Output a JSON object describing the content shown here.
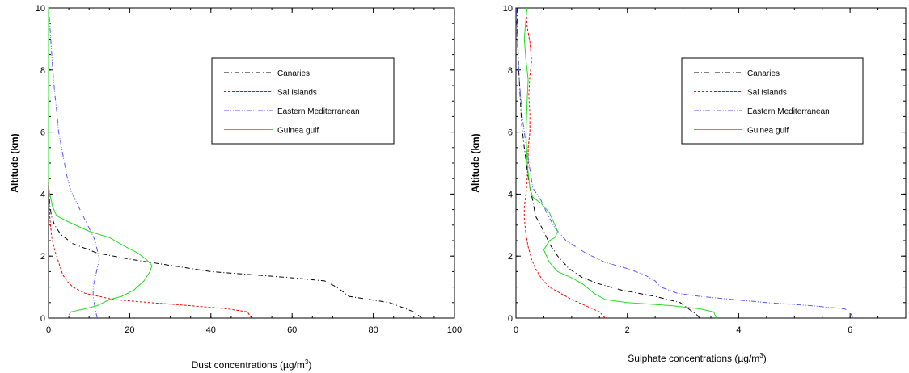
{
  "chart_data": [
    {
      "type": "line",
      "xlabel": "Dust concentrations (µg/m",
      "xlabel_sup": "3",
      "xlabel_end": ")",
      "ylabel": "Altitude (km)",
      "xlim": [
        0,
        100
      ],
      "ylim": [
        0,
        10
      ],
      "x_ticks": [
        0,
        20,
        40,
        60,
        80,
        100
      ],
      "x_tick_labels": [
        "0",
        "20",
        "40",
        "60",
        "80",
        "100"
      ],
      "y_ticks": [
        0,
        2,
        4,
        6,
        8,
        10
      ],
      "y_tick_labels": [
        "0",
        "2",
        "4",
        "6",
        "8",
        "10"
      ],
      "legend_position": "top-right",
      "series": [
        {
          "name": "Canaries",
          "color": "#000000",
          "dash": "dashdot",
          "points": [
            [
              92,
              0
            ],
            [
              90,
              0.2
            ],
            [
              84,
              0.5
            ],
            [
              74,
              0.7
            ],
            [
              73,
              0.8
            ],
            [
              71,
              1.0
            ],
            [
              68,
              1.2
            ],
            [
              60,
              1.3
            ],
            [
              50,
              1.4
            ],
            [
              40,
              1.5
            ],
            [
              30,
              1.7
            ],
            [
              20,
              1.9
            ],
            [
              12,
              2.1
            ],
            [
              6,
              2.4
            ],
            [
              3,
              2.7
            ],
            [
              1.5,
              3.0
            ],
            [
              0.7,
              3.3
            ],
            [
              0.3,
              3.7
            ],
            [
              0.1,
              4.2
            ],
            [
              0,
              5
            ],
            [
              0,
              10
            ]
          ]
        },
        {
          "name": "Sal Islands",
          "color": "#ff0000",
          "dash": "dash",
          "points": [
            [
              50,
              0
            ],
            [
              49,
              0.2
            ],
            [
              44,
              0.3
            ],
            [
              35,
              0.4
            ],
            [
              25,
              0.5
            ],
            [
              16,
              0.6
            ],
            [
              9,
              0.8
            ],
            [
              6,
              1.0
            ],
            [
              4.5,
              1.2
            ],
            [
              3.5,
              1.4
            ],
            [
              2.5,
              1.8
            ],
            [
              1.5,
              2.2
            ],
            [
              0.8,
              2.6
            ],
            [
              0.5,
              3.0
            ],
            [
              0.3,
              3.3
            ],
            [
              0.2,
              3.6
            ],
            [
              0.1,
              4.0
            ],
            [
              0,
              4.5
            ],
            [
              0,
              10
            ]
          ]
        },
        {
          "name": "Eastern Mediterranean",
          "color": "#5555ff",
          "dash": "dashdotdot",
          "points": [
            [
              12,
              0
            ],
            [
              11.5,
              0.3
            ],
            [
              11,
              0.7
            ],
            [
              11,
              1.0
            ],
            [
              11.5,
              1.3
            ],
            [
              12,
              1.6
            ],
            [
              12.5,
              1.9
            ],
            [
              12,
              2.2
            ],
            [
              11.5,
              2.5
            ],
            [
              10,
              2.9
            ],
            [
              8.5,
              3.3
            ],
            [
              7,
              3.7
            ],
            [
              5.5,
              4.1
            ],
            [
              4.5,
              4.6
            ],
            [
              3.5,
              5.3
            ],
            [
              2.5,
              6.0
            ],
            [
              2,
              6.7
            ],
            [
              1.5,
              7.3
            ],
            [
              1,
              8.1
            ],
            [
              0.7,
              8.7
            ],
            [
              0.4,
              9.3
            ],
            [
              0.2,
              9.7
            ],
            [
              0.1,
              10
            ]
          ]
        },
        {
          "name": "Guinea gulf",
          "color": "#22dd22",
          "dash": "solid",
          "points": [
            [
              5,
              0.1
            ],
            [
              5.5,
              0.2
            ],
            [
              9,
              0.3
            ],
            [
              12,
              0.4
            ],
            [
              15,
              0.6
            ],
            [
              18,
              0.7
            ],
            [
              21,
              0.9
            ],
            [
              23.5,
              1.2
            ],
            [
              25,
              1.5
            ],
            [
              25.5,
              1.7
            ],
            [
              24,
              1.9
            ],
            [
              22,
              2.1
            ],
            [
              19,
              2.3
            ],
            [
              15,
              2.6
            ],
            [
              10,
              2.8
            ],
            [
              5,
              3.1
            ],
            [
              2,
              3.3
            ],
            [
              1,
              3.6
            ],
            [
              0.5,
              3.9
            ],
            [
              0.1,
              4.1
            ],
            [
              0,
              4.5
            ],
            [
              0,
              10
            ]
          ]
        }
      ]
    },
    {
      "type": "line",
      "xlabel": "Sulphate concentrations (µg/m",
      "xlabel_sup": "3",
      "xlabel_end": ")",
      "ylabel": "Altitude (km)",
      "xlim": [
        0,
        7
      ],
      "ylim": [
        0,
        10
      ],
      "x_ticks": [
        0,
        2,
        4,
        6
      ],
      "x_tick_labels": [
        "0",
        "2",
        "4",
        "6"
      ],
      "y_ticks": [
        0,
        2,
        4,
        6,
        8,
        10
      ],
      "y_tick_labels": [
        "0",
        "2",
        "4",
        "6",
        "8",
        "10"
      ],
      "legend_position": "top-right",
      "series": [
        {
          "name": "Canaries",
          "color": "#000000",
          "dash": "dashdot",
          "points": [
            [
              3.3,
              0
            ],
            [
              3.25,
              0.1
            ],
            [
              3.1,
              0.3
            ],
            [
              2.95,
              0.5
            ],
            [
              2.5,
              0.7
            ],
            [
              1.9,
              0.9
            ],
            [
              1.5,
              1.1
            ],
            [
              1.2,
              1.3
            ],
            [
              0.95,
              1.6
            ],
            [
              0.75,
              2.0
            ],
            [
              0.6,
              2.4
            ],
            [
              0.5,
              2.8
            ],
            [
              0.35,
              3.3
            ],
            [
              0.3,
              3.8
            ],
            [
              0.25,
              4.2
            ],
            [
              0.2,
              4.8
            ],
            [
              0.15,
              5.5
            ],
            [
              0.1,
              6.3
            ],
            [
              0.08,
              7.0
            ],
            [
              0.05,
              8.0
            ],
            [
              0.03,
              9.0
            ],
            [
              0.02,
              10
            ]
          ]
        },
        {
          "name": "Sal Islands",
          "color": "#ff0000",
          "dash": "dash",
          "points": [
            [
              1.6,
              0
            ],
            [
              1.5,
              0.2
            ],
            [
              1.25,
              0.4
            ],
            [
              1.0,
              0.6
            ],
            [
              0.8,
              0.8
            ],
            [
              0.6,
              1.0
            ],
            [
              0.45,
              1.3
            ],
            [
              0.35,
              1.6
            ],
            [
              0.28,
              1.9
            ],
            [
              0.22,
              2.3
            ],
            [
              0.18,
              2.7
            ],
            [
              0.15,
              3.2
            ],
            [
              0.15,
              3.6
            ],
            [
              0.18,
              4.0
            ],
            [
              0.2,
              4.5
            ],
            [
              0.22,
              5.0
            ],
            [
              0.22,
              5.5
            ],
            [
              0.25,
              6.0
            ],
            [
              0.25,
              6.6
            ],
            [
              0.23,
              7.2
            ],
            [
              0.25,
              7.8
            ],
            [
              0.28,
              8.3
            ],
            [
              0.25,
              8.9
            ],
            [
              0.2,
              9.4
            ],
            [
              0.18,
              10
            ]
          ]
        },
        {
          "name": "Eastern Mediterranean",
          "color": "#5555ff",
          "dash": "dashdotdot",
          "points": [
            [
              6.05,
              0
            ],
            [
              6.0,
              0.2
            ],
            [
              5.9,
              0.3
            ],
            [
              5.3,
              0.4
            ],
            [
              4.5,
              0.5
            ],
            [
              3.9,
              0.6
            ],
            [
              3.3,
              0.7
            ],
            [
              2.9,
              0.8
            ],
            [
              2.6,
              1.0
            ],
            [
              2.5,
              1.2
            ],
            [
              2.3,
              1.4
            ],
            [
              2.0,
              1.6
            ],
            [
              1.6,
              1.8
            ],
            [
              1.25,
              2.1
            ],
            [
              0.9,
              2.5
            ],
            [
              0.7,
              2.9
            ],
            [
              0.55,
              3.4
            ],
            [
              0.45,
              3.8
            ],
            [
              0.3,
              4.2
            ],
            [
              0.25,
              4.8
            ],
            [
              0.18,
              5.6
            ],
            [
              0.12,
              6.4
            ],
            [
              0.08,
              7.2
            ],
            [
              0.05,
              8.0
            ],
            [
              0.02,
              9.0
            ],
            [
              0.01,
              10
            ]
          ]
        },
        {
          "name": "Guinea gulf",
          "color": "#22dd22",
          "dash": "solid",
          "points": [
            [
              3.6,
              0
            ],
            [
              3.55,
              0.2
            ],
            [
              3.3,
              0.3
            ],
            [
              2.8,
              0.4
            ],
            [
              2.0,
              0.5
            ],
            [
              1.6,
              0.6
            ],
            [
              1.4,
              0.8
            ],
            [
              1.2,
              1.1
            ],
            [
              1.0,
              1.3
            ],
            [
              0.75,
              1.5
            ],
            [
              0.6,
              1.8
            ],
            [
              0.5,
              2.2
            ],
            [
              0.6,
              2.5
            ],
            [
              0.7,
              2.6
            ],
            [
              0.75,
              2.8
            ],
            [
              0.7,
              3.0
            ],
            [
              0.6,
              3.4
            ],
            [
              0.45,
              3.7
            ],
            [
              0.3,
              3.9
            ],
            [
              0.25,
              4.2
            ],
            [
              0.2,
              5.0
            ],
            [
              0.18,
              6.0
            ],
            [
              0.2,
              7.0
            ],
            [
              0.22,
              7.7
            ],
            [
              0.18,
              8.3
            ],
            [
              0.15,
              9.0
            ],
            [
              0.18,
              9.7
            ],
            [
              0.2,
              10
            ]
          ]
        }
      ]
    }
  ]
}
